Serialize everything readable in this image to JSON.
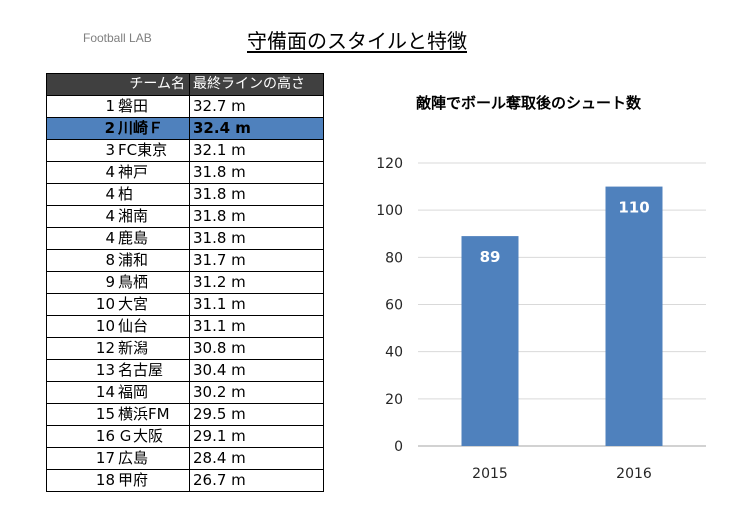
{
  "brand": "Football LAB",
  "page_title": "守備面のスタイルと特徴",
  "table": {
    "headers": [
      "チーム名",
      "最終ラインの高さ"
    ],
    "highlight_index": 1,
    "rows": [
      {
        "rank": "1",
        "team": "磐田",
        "height": "32.7 m"
      },
      {
        "rank": "2",
        "team": "川崎Ｆ",
        "height": "32.4 m"
      },
      {
        "rank": "3",
        "team": "FC東京",
        "height": "32.1 m"
      },
      {
        "rank": "4",
        "team": "神戸",
        "height": "31.8 m"
      },
      {
        "rank": "4",
        "team": "柏",
        "height": "31.8 m"
      },
      {
        "rank": "4",
        "team": "湘南",
        "height": "31.8 m"
      },
      {
        "rank": "4",
        "team": "鹿島",
        "height": "31.8 m"
      },
      {
        "rank": "8",
        "team": "浦和",
        "height": "31.7 m"
      },
      {
        "rank": "9",
        "team": "鳥栖",
        "height": "31.2 m"
      },
      {
        "rank": "10",
        "team": "大宮",
        "height": "31.1 m"
      },
      {
        "rank": "10",
        "team": "仙台",
        "height": "31.1 m"
      },
      {
        "rank": "12",
        "team": "新潟",
        "height": "30.8 m"
      },
      {
        "rank": "13",
        "team": "名古屋",
        "height": "30.4 m"
      },
      {
        "rank": "14",
        "team": "福岡",
        "height": "30.2 m"
      },
      {
        "rank": "15",
        "team": "横浜FM",
        "height": "29.5 m"
      },
      {
        "rank": "16",
        "team": "Ｇ大阪",
        "height": "29.1 m"
      },
      {
        "rank": "17",
        "team": "広島",
        "height": "28.4 m"
      },
      {
        "rank": "18",
        "team": "甲府",
        "height": "26.7 m"
      }
    ]
  },
  "chart_data": {
    "type": "bar",
    "title": "敵陣でボール奪取後のシュート数",
    "categories": [
      "2015",
      "2016"
    ],
    "values": [
      89,
      110
    ],
    "data_labels": [
      "89",
      "110"
    ],
    "ylim": [
      0,
      120
    ],
    "yticks": [
      "0",
      "20",
      "40",
      "60",
      "80",
      "100",
      "120"
    ],
    "grid": true,
    "bar_color": "#4f81bd",
    "label_color": "#ffffff",
    "xlabel": "",
    "ylabel": ""
  }
}
